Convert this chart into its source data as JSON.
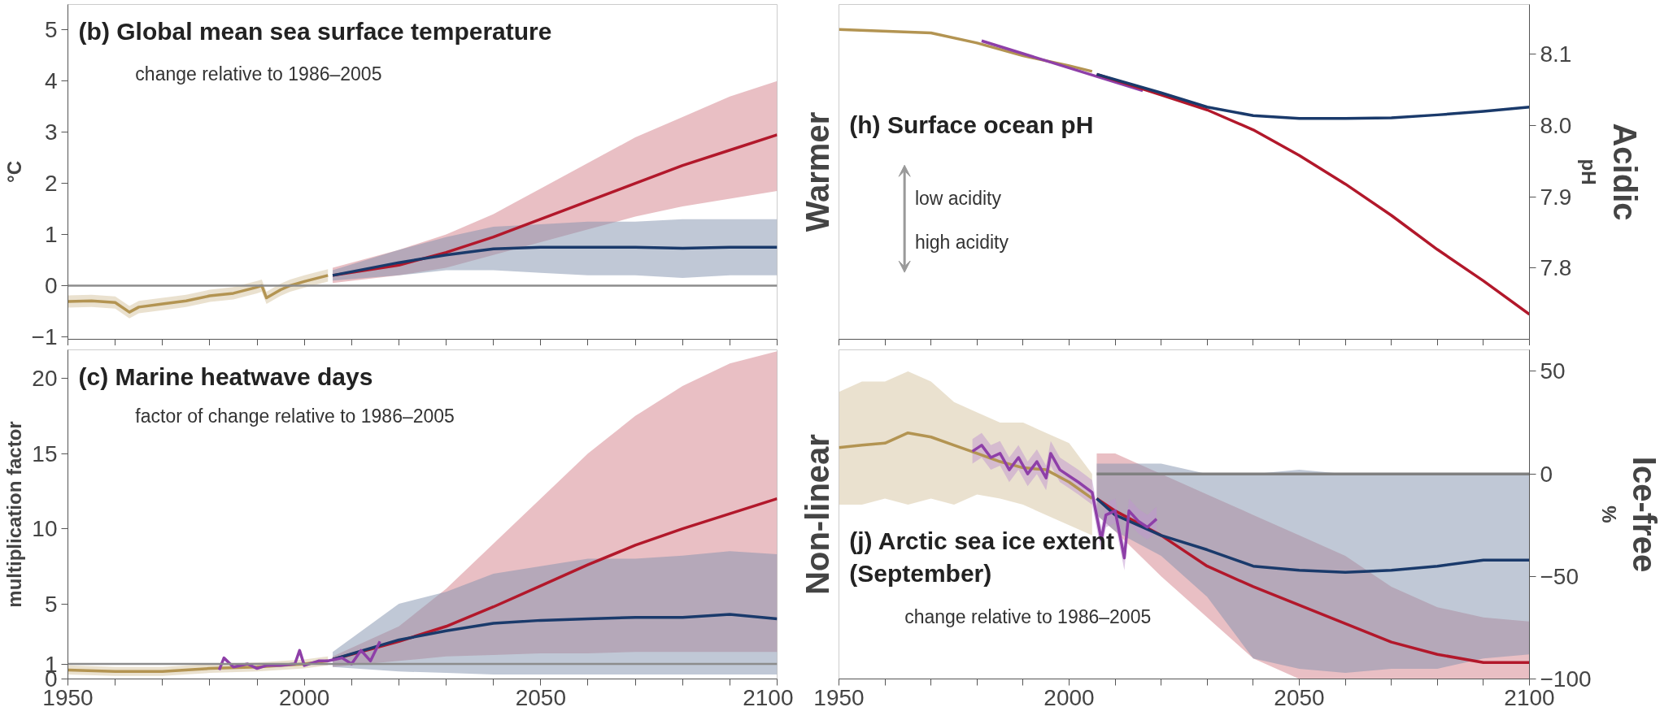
{
  "chart_data": [
    {
      "type": "line",
      "title": "(b)  Global mean sea surface temperature",
      "subtitle": "change relative to 1986–2005",
      "ylabel": "°C",
      "xlim": [
        1950,
        2100
      ],
      "ylim": [
        -1.05,
        5.5
      ],
      "xticks": [
        1950,
        {
          "value": 1960,
          "label": null
        },
        {
          "value": 1970,
          "label": null
        },
        {
          "value": 1980,
          "label": null
        },
        {
          "value": 1990,
          "label": null
        },
        2000,
        {
          "value": 2010,
          "label": null
        },
        {
          "value": 2020,
          "label": null
        },
        {
          "value": 2030,
          "label": null
        },
        {
          "value": 2040,
          "label": null
        },
        2050,
        {
          "value": 2060,
          "label": null
        },
        {
          "value": 2070,
          "label": null
        },
        {
          "value": 2080,
          "label": null
        },
        {
          "value": 2090,
          "label": null
        },
        2100
      ],
      "yticks": [
        -1,
        0,
        1,
        2,
        3,
        4,
        5
      ],
      "tick_labels": "y",
      "grid": false,
      "ref_lines": [
        {
          "axis": "y",
          "value": 0,
          "color": "#8c8c8c"
        }
      ],
      "series": [
        {
          "color": "#b39452",
          "x": [
            1950,
            1955,
            1960,
            1963,
            1965,
            1970,
            1975,
            1980,
            1985,
            1990,
            1991,
            1992,
            1995,
            1997,
            2000,
            2005
          ],
          "values": [
            -0.31,
            -0.3,
            -0.33,
            -0.52,
            -0.42,
            -0.36,
            -0.3,
            -0.2,
            -0.15,
            -0.03,
            0.0,
            -0.24,
            -0.08,
            0.0,
            0.08,
            0.2
          ],
          "lower": [
            -0.43,
            -0.42,
            -0.45,
            -0.64,
            -0.54,
            -0.48,
            -0.42,
            -0.32,
            -0.27,
            -0.15,
            -0.12,
            -0.36,
            -0.2,
            -0.12,
            -0.04,
            0.08
          ],
          "upper": [
            -0.19,
            -0.18,
            -0.21,
            -0.4,
            -0.3,
            -0.24,
            -0.18,
            -0.08,
            -0.03,
            0.09,
            0.12,
            -0.12,
            0.04,
            0.12,
            0.2,
            0.32
          ]
        },
        {
          "color": "#b2182b",
          "x": [
            2006,
            2020,
            2030,
            2040,
            2050,
            2060,
            2070,
            2080,
            2090,
            2100
          ],
          "values": [
            0.2,
            0.4,
            0.65,
            0.95,
            1.3,
            1.65,
            2.0,
            2.35,
            2.65,
            2.95
          ],
          "lower": [
            0.05,
            0.2,
            0.35,
            0.6,
            0.85,
            1.1,
            1.35,
            1.55,
            1.7,
            1.85
          ],
          "upper": [
            0.35,
            0.7,
            1.0,
            1.4,
            1.9,
            2.4,
            2.9,
            3.3,
            3.7,
            4.0
          ]
        },
        {
          "color": "#1a3a6b",
          "x": [
            2006,
            2020,
            2030,
            2040,
            2050,
            2060,
            2070,
            2080,
            2090,
            2100
          ],
          "values": [
            0.2,
            0.45,
            0.6,
            0.72,
            0.75,
            0.75,
            0.75,
            0.73,
            0.75,
            0.75
          ],
          "lower": [
            0.1,
            0.2,
            0.3,
            0.3,
            0.25,
            0.2,
            0.2,
            0.15,
            0.2,
            0.2
          ],
          "upper": [
            0.3,
            0.7,
            0.95,
            1.15,
            1.2,
            1.25,
            1.25,
            1.3,
            1.3,
            1.3
          ]
        }
      ]
    },
    {
      "type": "line",
      "title": "(h)  Surface ocean pH",
      "ylabel": "pH",
      "annotations": [
        "low acidity",
        "high acidity",
        "Warmer",
        "Acidic"
      ],
      "xlim": [
        1950,
        2100
      ],
      "ylim": [
        7.7,
        8.17
      ],
      "xticks": [
        1950,
        {
          "value": 1960,
          "label": null
        },
        {
          "value": 1970,
          "label": null
        },
        {
          "value": 1980,
          "label": null
        },
        {
          "value": 1990,
          "label": null
        },
        2000,
        {
          "value": 2010,
          "label": null
        },
        {
          "value": 2020,
          "label": null
        },
        {
          "value": 2030,
          "label": null
        },
        {
          "value": 2040,
          "label": null
        },
        2050,
        {
          "value": 2060,
          "label": null
        },
        {
          "value": 2070,
          "label": null
        },
        {
          "value": 2080,
          "label": null
        },
        {
          "value": 2090,
          "label": null
        },
        2100
      ],
      "yticks": [
        7.8,
        7.9,
        {
          "value": 8.0,
          "label": "8.0"
        },
        8.1
      ],
      "tick_labels": "y",
      "grid": false,
      "series": [
        {
          "color": "#b39452",
          "x": [
            1950,
            1970,
            1980,
            1990,
            2000,
            2005
          ],
          "values": [
            8.135,
            8.13,
            8.116,
            8.098,
            8.084,
            8.076
          ]
        },
        {
          "color": "#8e3fa8",
          "x": [
            1981,
            2016
          ],
          "values": [
            8.119,
            8.049
          ]
        },
        {
          "color": "#b2182b",
          "x": [
            2006,
            2020,
            2030,
            2040,
            2050,
            2060,
            2070,
            2080,
            2090,
            2100
          ],
          "values": [
            8.072,
            8.043,
            8.022,
            7.994,
            7.958,
            7.918,
            7.874,
            7.826,
            7.782,
            7.735
          ]
        },
        {
          "color": "#1a3a6b",
          "x": [
            2006,
            2020,
            2030,
            2040,
            2050,
            2060,
            2070,
            2080,
            2090,
            2100
          ],
          "values": [
            8.072,
            8.046,
            8.026,
            8.014,
            8.01,
            8.01,
            8.011,
            8.015,
            8.02,
            8.026
          ]
        }
      ]
    },
    {
      "type": "line",
      "title": "(c)  Marine heatwave days",
      "subtitle": "factor of change relative to 1986–2005",
      "ylabel": "multiplication factor",
      "xlim": [
        1950,
        2100
      ],
      "ylim": [
        0,
        21.9
      ],
      "xticks": [
        1950,
        {
          "value": 1960,
          "label": null
        },
        {
          "value": 1970,
          "label": null
        },
        {
          "value": 1980,
          "label": null
        },
        {
          "value": 1990,
          "label": null
        },
        2000,
        {
          "value": 2010,
          "label": null
        },
        {
          "value": 2020,
          "label": null
        },
        {
          "value": 2030,
          "label": null
        },
        {
          "value": 2040,
          "label": null
        },
        2050,
        {
          "value": 2060,
          "label": null
        },
        {
          "value": 2070,
          "label": null
        },
        {
          "value": 2080,
          "label": null
        },
        {
          "value": 2090,
          "label": null
        },
        2100
      ],
      "yticks": [
        0,
        1,
        5,
        10,
        15,
        20
      ],
      "grid": false,
      "ref_lines": [
        {
          "axis": "y",
          "value": 1,
          "color": "#8c8c8c"
        }
      ],
      "series": [
        {
          "color": "#b39452",
          "x": [
            1950,
            1960,
            1970,
            1980,
            1990,
            2000,
            2005
          ],
          "values": [
            0.6,
            0.5,
            0.5,
            0.7,
            0.8,
            1.0,
            1.2
          ],
          "lower": [
            0.3,
            0.2,
            0.2,
            0.4,
            0.5,
            0.7,
            0.9
          ],
          "upper": [
            0.9,
            0.8,
            0.8,
            1.0,
            1.1,
            1.3,
            1.5
          ]
        },
        {
          "color": "#b2182b",
          "x": [
            2006,
            2020,
            2030,
            2040,
            2050,
            2060,
            2070,
            2080,
            2090,
            2100
          ],
          "values": [
            1.3,
            2.5,
            3.5,
            4.8,
            6.2,
            7.6,
            8.9,
            10.0,
            11.0,
            12.0
          ],
          "lower": [
            0.8,
            1.2,
            1.5,
            1.6,
            1.7,
            1.7,
            1.8,
            1.8,
            1.8,
            1.8
          ],
          "upper": [
            1.5,
            3.5,
            6.0,
            9.0,
            12.0,
            15.0,
            17.5,
            19.5,
            21.0,
            21.8
          ]
        },
        {
          "color": "#1a3a6b",
          "x": [
            2006,
            2020,
            2030,
            2040,
            2050,
            2060,
            2070,
            2080,
            2090,
            2100
          ],
          "values": [
            1.3,
            2.6,
            3.2,
            3.7,
            3.9,
            4.0,
            4.1,
            4.1,
            4.3,
            4.0
          ],
          "lower": [
            0.8,
            0.5,
            0.4,
            0.3,
            0.3,
            0.3,
            0.3,
            0.3,
            0.3,
            0.3
          ],
          "upper": [
            1.8,
            5.0,
            5.8,
            7.0,
            7.5,
            8.0,
            8.0,
            8.2,
            8.5,
            8.3
          ]
        },
        {
          "color": "#8e3fa8",
          "x": [
            1982,
            1983,
            1985,
            1988,
            1990,
            1992,
            1995,
            1998,
            1999,
            2000,
            2003,
            2005,
            2008,
            2010,
            2012,
            2014,
            2016
          ],
          "values": [
            0.6,
            1.4,
            0.8,
            1.0,
            0.7,
            0.9,
            0.9,
            1.0,
            1.9,
            0.9,
            1.2,
            1.2,
            1.4,
            1.0,
            1.9,
            1.2,
            2.5
          ]
        }
      ]
    },
    {
      "type": "line",
      "title": "(j)  Arctic sea ice extent\n(September)",
      "subtitle": "change relative to 1986–2005",
      "ylabel": "%",
      "annotations": [
        "Non-linear",
        "Ice-free"
      ],
      "xlim": [
        1950,
        2100
      ],
      "ylim": [
        -100,
        60.5
      ],
      "xticks": [
        1950,
        {
          "value": 1960,
          "label": null
        },
        {
          "value": 1970,
          "label": null
        },
        {
          "value": 1980,
          "label": null
        },
        {
          "value": 1990,
          "label": null
        },
        2000,
        {
          "value": 2010,
          "label": null
        },
        {
          "value": 2020,
          "label": null
        },
        {
          "value": 2030,
          "label": null
        },
        {
          "value": 2040,
          "label": null
        },
        2050,
        {
          "value": 2060,
          "label": null
        },
        {
          "value": 2070,
          "label": null
        },
        {
          "value": 2080,
          "label": null
        },
        {
          "value": 2090,
          "label": null
        },
        2100
      ],
      "yticks": [
        -100,
        -50,
        0,
        50
      ],
      "grid": false,
      "series": [
        {
          "color": "#b39452",
          "x": [
            1950,
            1955,
            1960,
            1965,
            1970,
            1975,
            1980,
            1985,
            1990,
            1995,
            2000,
            2005
          ],
          "values": [
            12.8,
            14,
            15,
            20,
            18,
            14,
            10,
            6,
            3,
            2,
            -4,
            -12
          ],
          "lower": [
            -15,
            -15,
            -12,
            -15,
            -12,
            -15,
            -10,
            -12,
            -15,
            -20,
            -25,
            -30
          ],
          "upper": [
            40,
            45,
            45,
            50,
            45,
            35,
            30,
            25,
            25,
            20,
            15,
            0
          ]
        },
        {
          "color": "#b2182b",
          "x": [
            2006,
            2010,
            2020,
            2030,
            2040,
            2050,
            2060,
            2070,
            2080,
            2090,
            2100
          ],
          "values": [
            -12,
            -18,
            -30,
            -45,
            -55,
            -64,
            -73,
            -82,
            -88,
            -92,
            -92
          ],
          "lower": [
            -20,
            -28,
            -50,
            -70,
            -90,
            -100,
            -100,
            -100,
            -100,
            -100,
            -100
          ],
          "upper": [
            10,
            10,
            0,
            -10,
            -20,
            -30,
            -40,
            -55,
            -65,
            -70,
            -72
          ]
        },
        {
          "color": "#1a3a6b",
          "x": [
            2006,
            2010,
            2020,
            2030,
            2040,
            2050,
            2060,
            2070,
            2080,
            2090,
            2100
          ],
          "values": [
            -12,
            -20,
            -30,
            -37,
            -45,
            -47,
            -48,
            -47,
            -45,
            -42,
            -42
          ],
          "lower": [
            -20,
            -28,
            -40,
            -60,
            -90,
            -95,
            -97,
            -95,
            -95,
            -90,
            -88
          ],
          "upper": [
            5,
            5,
            5,
            0,
            0,
            2,
            0,
            0,
            0,
            0,
            0
          ]
        },
        {
          "color": "#8e3fa8",
          "x": [
            1979,
            1981,
            1983,
            1985,
            1987,
            1989,
            1991,
            1993,
            1995,
            1996,
            1998,
            2000,
            2002,
            2005,
            2007,
            2008,
            2010,
            2012,
            2013,
            2015,
            2017,
            2019
          ],
          "values": [
            11,
            14,
            8,
            10,
            2,
            8,
            0,
            6,
            -2,
            10,
            2,
            -1,
            -4,
            -9,
            -32,
            -20,
            -18,
            -41,
            -18,
            -23,
            -26,
            -22
          ],
          "lower": [
            5,
            8,
            2,
            4,
            -4,
            2,
            -6,
            0,
            -8,
            4,
            -4,
            -7,
            -10,
            -15,
            -38,
            -26,
            -24,
            -47,
            -24,
            -29,
            -32,
            -28
          ],
          "upper": [
            17,
            20,
            14,
            16,
            8,
            14,
            6,
            12,
            4,
            16,
            8,
            5,
            2,
            -3,
            -26,
            -14,
            -12,
            -35,
            -12,
            -17,
            -20,
            -16
          ]
        },
        {
          "color": "#808080",
          "x": [
            2006,
            2100
          ],
          "values": [
            0,
            0
          ]
        }
      ]
    }
  ]
}
